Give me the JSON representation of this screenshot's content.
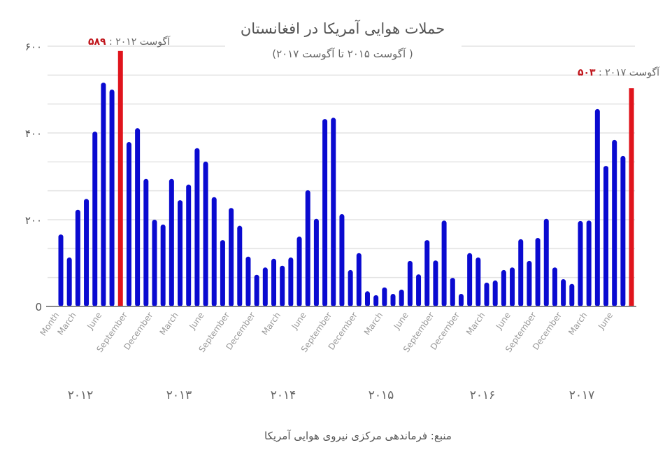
{
  "chart_data": {
    "type": "bar",
    "title": "حملات هوایی آمریکا در افغانستان",
    "subtitle": "( آگوست ۲۰۱۵ تا آگوست ۲۰۱۷)",
    "xlabel": "",
    "ylabel": "",
    "ylim": [
      0,
      600
    ],
    "yticks": [
      0,
      200,
      400,
      600
    ],
    "ytick_labels": [
      "0",
      "۲۰۰",
      "۴۰۰",
      "۶۰۰"
    ],
    "grid": true,
    "x_tick_labels": [
      "Month",
      "March",
      "June",
      "September",
      "December",
      "March",
      "June",
      "September",
      "December",
      "March",
      "June",
      "September",
      "December",
      "March",
      "June",
      "September",
      "December",
      "March",
      "June",
      "September",
      "December",
      "March",
      "June"
    ],
    "year_labels": [
      "۲۰۱۲",
      "۲۰۱۳",
      "۲۰۱۴",
      "۲۰۱۵",
      "۲۰۱۶",
      "۲۰۱۷"
    ],
    "values": [
      166,
      113,
      223,
      248,
      403,
      516,
      500,
      589,
      379,
      411,
      294,
      200,
      189,
      294,
      245,
      281,
      365,
      334,
      252,
      153,
      227,
      186,
      115,
      73,
      90,
      110,
      94,
      113,
      161,
      268,
      202,
      432,
      435,
      213,
      84,
      123,
      35,
      26,
      44,
      29,
      39,
      105,
      74,
      153,
      106,
      198,
      66,
      29,
      123,
      113,
      55,
      60,
      84,
      90,
      155,
      105,
      158,
      202,
      90,
      63,
      52,
      197,
      198,
      455,
      324,
      384,
      347,
      503
    ],
    "highlighted_indices": [
      7,
      67
    ],
    "colors": {
      "bar": "#0a0ad0",
      "highlight": "#e0141c"
    },
    "annotations": [
      {
        "value_text": "۵۸۹",
        "label": " : آگوست ۲۰۱۲"
      },
      {
        "value_text": "۵۰۳",
        "label": " : آگوست ۲۰۱۷"
      }
    ],
    "source": "منبع: فرماندهی مرکزی نیروی هوایی آمریکا"
  }
}
